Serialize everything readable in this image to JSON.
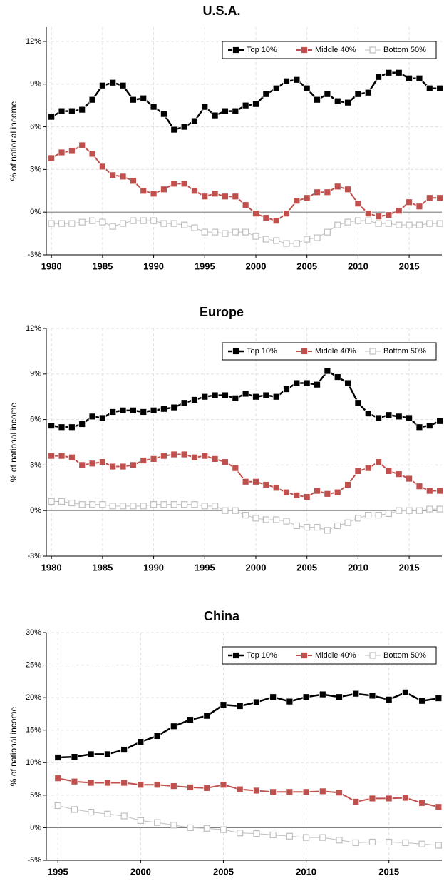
{
  "chart_data": [
    {
      "type": "line",
      "title": "U.S.A.",
      "ylabel": "% of national income",
      "x": [
        1980,
        1981,
        1982,
        1983,
        1984,
        1985,
        1986,
        1987,
        1988,
        1989,
        1990,
        1991,
        1992,
        1993,
        1994,
        1995,
        1996,
        1997,
        1998,
        1999,
        2000,
        2001,
        2002,
        2003,
        2004,
        2005,
        2006,
        2007,
        2008,
        2009,
        2010,
        2011,
        2012,
        2013,
        2014,
        2015,
        2016,
        2017,
        2018
      ],
      "series": [
        {
          "name": "Top 10%",
          "color": "#000000",
          "values": [
            6.7,
            7.1,
            7.1,
            7.2,
            7.9,
            8.9,
            9.1,
            8.9,
            7.9,
            8.0,
            7.4,
            6.9,
            5.8,
            6.0,
            6.4,
            7.4,
            6.8,
            7.1,
            7.1,
            7.5,
            7.6,
            8.3,
            8.7,
            9.2,
            9.3,
            8.7,
            7.9,
            8.3,
            7.8,
            7.7,
            8.3,
            8.4,
            9.5,
            9.8,
            9.8,
            9.4,
            9.4,
            8.7,
            8.7
          ]
        },
        {
          "name": "Middle 40%",
          "color": "#c0504d",
          "values": [
            3.8,
            4.2,
            4.3,
            4.7,
            4.1,
            3.2,
            2.6,
            2.5,
            2.2,
            1.5,
            1.3,
            1.6,
            2.0,
            2.0,
            1.5,
            1.1,
            1.3,
            1.1,
            1.1,
            0.5,
            -0.1,
            -0.4,
            -0.6,
            -0.1,
            0.8,
            1.0,
            1.4,
            1.4,
            1.8,
            1.6,
            0.6,
            -0.1,
            -0.3,
            -0.2,
            0.1,
            0.7,
            0.4,
            1.0,
            1.0
          ]
        },
        {
          "name": "Bottom 50%",
          "color": "#bfbfbf",
          "values": [
            -0.8,
            -0.8,
            -0.8,
            -0.7,
            -0.6,
            -0.7,
            -1.0,
            -0.8,
            -0.6,
            -0.6,
            -0.6,
            -0.8,
            -0.8,
            -0.9,
            -1.1,
            -1.4,
            -1.4,
            -1.5,
            -1.4,
            -1.4,
            -1.7,
            -1.9,
            -2.0,
            -2.2,
            -2.2,
            -1.9,
            -1.8,
            -1.4,
            -0.9,
            -0.7,
            -0.6,
            -0.6,
            -0.8,
            -0.8,
            -0.9,
            -0.9,
            -0.9,
            -0.8,
            -0.8
          ]
        }
      ],
      "xlim": [
        1979.5,
        2018.2
      ],
      "xticks": [
        1980,
        1985,
        1990,
        1995,
        2000,
        2005,
        2010,
        2015
      ],
      "ylim": [
        -3,
        13
      ],
      "yticks": [
        {
          "value": -3,
          "label": "-3%"
        },
        {
          "value": 0,
          "label": "0%"
        },
        {
          "value": 3,
          "label": "3%"
        },
        {
          "value": 6,
          "label": "6%"
        },
        {
          "value": 9,
          "label": "9%"
        },
        {
          "value": 12,
          "label": "12%"
        }
      ],
      "grid": true,
      "legend": "upper right"
    },
    {
      "type": "line",
      "title": "Europe",
      "ylabel": "% of national income",
      "x": [
        1980,
        1981,
        1982,
        1983,
        1984,
        1985,
        1986,
        1987,
        1988,
        1989,
        1990,
        1991,
        1992,
        1993,
        1994,
        1995,
        1996,
        1997,
        1998,
        1999,
        2000,
        2001,
        2002,
        2003,
        2004,
        2005,
        2006,
        2007,
        2008,
        2009,
        2010,
        2011,
        2012,
        2013,
        2014,
        2015,
        2016,
        2017,
        2018
      ],
      "series": [
        {
          "name": "Top 10%",
          "color": "#000000",
          "values": [
            5.6,
            5.5,
            5.5,
            5.7,
            6.2,
            6.1,
            6.5,
            6.6,
            6.6,
            6.5,
            6.6,
            6.7,
            6.8,
            7.1,
            7.3,
            7.5,
            7.6,
            7.6,
            7.4,
            7.7,
            7.5,
            7.6,
            7.5,
            8.0,
            8.4,
            8.4,
            8.3,
            9.2,
            8.8,
            8.4,
            7.1,
            6.4,
            6.1,
            6.3,
            6.2,
            6.1,
            5.5,
            5.6,
            5.9
          ]
        },
        {
          "name": "Middle 40%",
          "color": "#c0504d",
          "values": [
            3.6,
            3.6,
            3.5,
            3.0,
            3.1,
            3.2,
            2.9,
            2.9,
            3.0,
            3.3,
            3.4,
            3.6,
            3.7,
            3.7,
            3.5,
            3.6,
            3.4,
            3.2,
            2.8,
            1.9,
            1.9,
            1.7,
            1.5,
            1.2,
            1.0,
            0.9,
            1.3,
            1.1,
            1.2,
            1.7,
            2.6,
            2.8,
            3.2,
            2.6,
            2.4,
            2.1,
            1.6,
            1.3,
            1.3
          ]
        },
        {
          "name": "Bottom 50%",
          "color": "#bfbfbf",
          "values": [
            0.6,
            0.6,
            0.5,
            0.4,
            0.4,
            0.4,
            0.3,
            0.3,
            0.3,
            0.3,
            0.4,
            0.4,
            0.4,
            0.4,
            0.4,
            0.3,
            0.3,
            0.0,
            0.0,
            -0.3,
            -0.5,
            -0.6,
            -0.6,
            -0.7,
            -1.0,
            -1.1,
            -1.1,
            -1.3,
            -1.0,
            -0.8,
            -0.5,
            -0.3,
            -0.3,
            -0.2,
            0.0,
            0.0,
            0.0,
            0.1,
            0.1
          ]
        }
      ],
      "xlim": [
        1979.5,
        2018.2
      ],
      "xticks": [
        1980,
        1985,
        1990,
        1995,
        2000,
        2005,
        2010,
        2015
      ],
      "ylim": [
        -3,
        12
      ],
      "yticks": [
        {
          "value": -3,
          "label": "-3%"
        },
        {
          "value": 0,
          "label": "0%"
        },
        {
          "value": 3,
          "label": "3%"
        },
        {
          "value": 6,
          "label": "6%"
        },
        {
          "value": 9,
          "label": "9%"
        },
        {
          "value": 12,
          "label": "12%"
        }
      ],
      "grid": true,
      "legend": "upper right"
    },
    {
      "type": "line",
      "title": "China",
      "ylabel": "% of national income",
      "x": [
        1995,
        1996,
        1997,
        1998,
        1999,
        2000,
        2001,
        2002,
        2003,
        2004,
        2005,
        2006,
        2007,
        2008,
        2009,
        2010,
        2011,
        2012,
        2013,
        2014,
        2015,
        2016,
        2017,
        2018
      ],
      "series": [
        {
          "name": "Top 10%",
          "color": "#000000",
          "values": [
            10.8,
            10.9,
            11.3,
            11.3,
            12.0,
            13.2,
            14.1,
            15.6,
            16.6,
            17.2,
            18.9,
            18.7,
            19.3,
            20.1,
            19.4,
            20.1,
            20.5,
            20.1,
            20.6,
            20.3,
            19.7,
            20.8,
            19.5,
            19.9
          ]
        },
        {
          "name": "Middle 40%",
          "color": "#c0504d",
          "values": [
            7.6,
            7.1,
            6.9,
            6.9,
            6.9,
            6.6,
            6.6,
            6.4,
            6.2,
            6.1,
            6.6,
            5.9,
            5.7,
            5.5,
            5.5,
            5.5,
            5.6,
            5.4,
            4.0,
            4.5,
            4.5,
            4.6,
            3.8,
            3.2
          ]
        },
        {
          "name": "Bottom 50%",
          "color": "#bfbfbf",
          "values": [
            3.4,
            2.8,
            2.4,
            2.1,
            1.8,
            1.1,
            0.8,
            0.4,
            0.0,
            -0.1,
            -0.3,
            -0.8,
            -0.9,
            -1.1,
            -1.3,
            -1.5,
            -1.5,
            -1.9,
            -2.3,
            -2.2,
            -2.2,
            -2.3,
            -2.5,
            -2.7
          ]
        }
      ],
      "xlim": [
        1994.3,
        2018.2
      ],
      "xticks": [
        1995,
        2000,
        2005,
        2010,
        2015
      ],
      "ylim": [
        -5,
        30
      ],
      "yticks": [
        {
          "value": -5,
          "label": "-5%"
        },
        {
          "value": 0,
          "label": "0%"
        },
        {
          "value": 5,
          "label": "5%"
        },
        {
          "value": 10,
          "label": "10%"
        },
        {
          "value": 15,
          "label": "15%"
        },
        {
          "value": 20,
          "label": "20%"
        },
        {
          "value": 25,
          "label": "25%"
        },
        {
          "value": 30,
          "label": "30%"
        }
      ],
      "grid": true,
      "legend": "upper right"
    }
  ]
}
